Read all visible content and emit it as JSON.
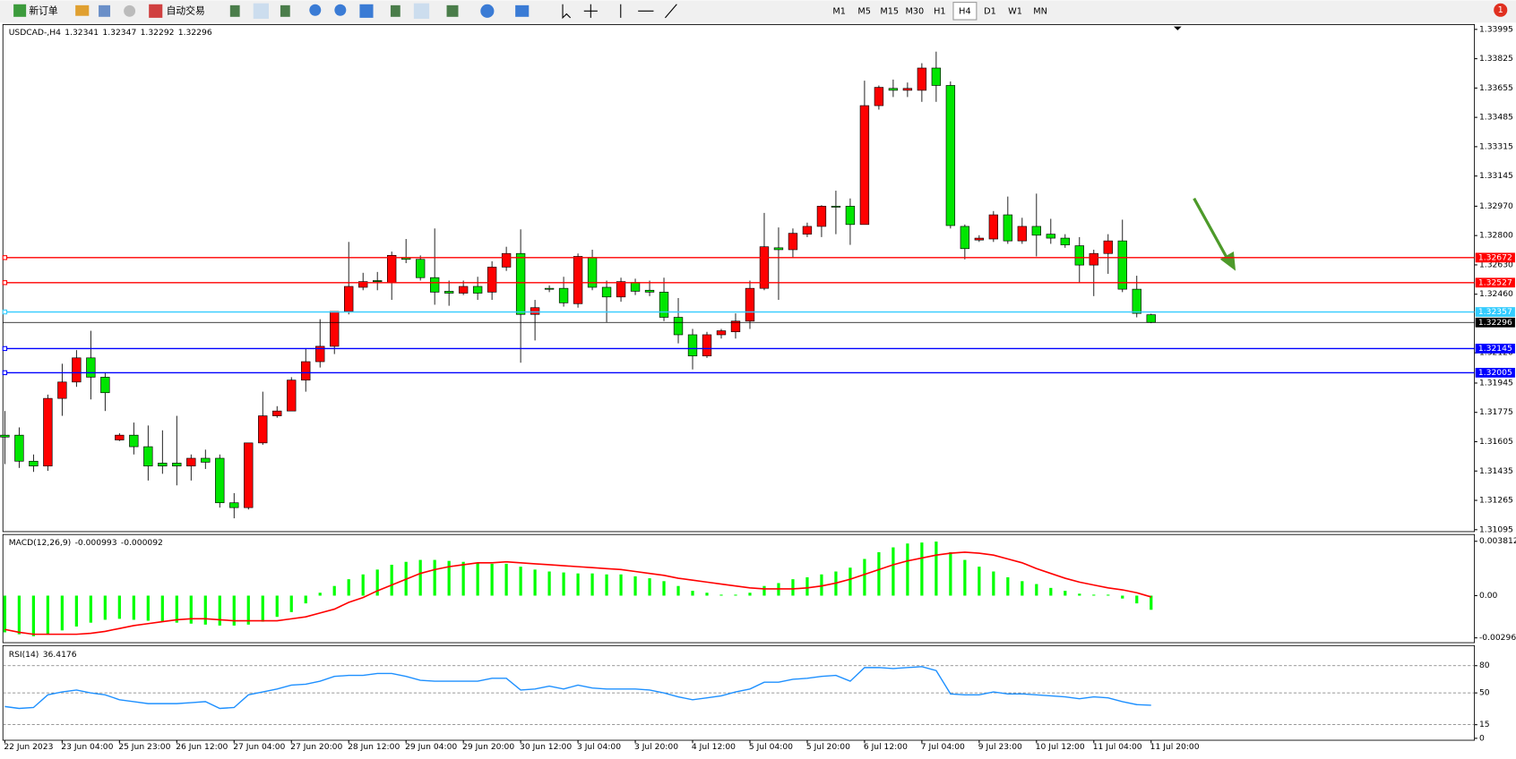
{
  "toolbar": {
    "new_order": "新订单",
    "auto_trading": "自动交易",
    "timeframes": [
      "M1",
      "M5",
      "M15",
      "M30",
      "H1",
      "H4",
      "D1",
      "W1",
      "MN"
    ],
    "selected_timeframe": "H4",
    "notifications": 1
  },
  "chart_data": [
    {
      "type": "candlestick",
      "symbol": "USDCAD-,H4",
      "up_color": "#ff0000",
      "down_color": "#00e600",
      "categories": [
        "22 Jun 2023",
        null,
        null,
        null,
        "23 Jun 04:00",
        null,
        null,
        null,
        "25 Jun 23:00",
        null,
        null,
        null,
        "26 Jun 12:00",
        null,
        null,
        null,
        "27 Jun 04:00",
        null,
        null,
        null,
        "27 Jun 20:00",
        null,
        null,
        null,
        "28 Jun 12:00",
        null,
        null,
        null,
        "29 Jun 04:00",
        null,
        null,
        null,
        "29 Jun 20:00",
        null,
        null,
        null,
        "30 Jun 12:00",
        null,
        null,
        null,
        "3 Jul 04:00",
        null,
        null,
        null,
        "3 Jul 20:00",
        null,
        null,
        null,
        "4 Jul 12:00",
        null,
        null,
        null,
        "5 Jul 04:00",
        null,
        null,
        null,
        "5 Jul 20:00",
        null,
        null,
        null,
        "6 Jul 12:00",
        null,
        null,
        null,
        "7 Jul 04:00",
        null,
        null,
        null,
        "9 Jul 23:00",
        null,
        null,
        null,
        "10 Jul 12:00",
        null,
        null,
        null,
        "11 Jul 04:00",
        null,
        null,
        null,
        "11 Jul 20:00"
      ],
      "ohlc": [
        [
          1.31643,
          1.31783,
          1.31475,
          1.31632
        ],
        [
          1.31643,
          1.31688,
          1.31453,
          1.31492
        ],
        [
          1.31492,
          1.31531,
          1.3143,
          1.31464
        ],
        [
          1.31464,
          1.31878,
          1.31436,
          1.31856
        ],
        [
          1.31856,
          1.32057,
          1.31755,
          1.31951
        ],
        [
          1.31951,
          1.32136,
          1.31923,
          1.32091
        ],
        [
          1.32091,
          1.32248,
          1.3185,
          1.31979
        ],
        [
          1.31979,
          1.32007,
          1.31783,
          1.31889
        ],
        [
          1.31615,
          1.31654,
          1.31609,
          1.31643
        ],
        [
          1.31643,
          1.31716,
          1.31531,
          1.31576
        ],
        [
          1.31576,
          1.31699,
          1.3138,
          1.31464
        ],
        [
          1.31481,
          1.31671,
          1.31419,
          1.31464
        ],
        [
          1.31481,
          1.31755,
          1.31352,
          1.31464
        ],
        [
          1.31464,
          1.31531,
          1.3138,
          1.31509
        ],
        [
          1.31509,
          1.31559,
          1.31447,
          1.31486
        ],
        [
          1.31509,
          1.31531,
          1.31223,
          1.31251
        ],
        [
          1.31251,
          1.31307,
          1.31161,
          1.31223
        ],
        [
          1.31223,
          1.31598,
          1.31212,
          1.31598
        ],
        [
          1.31598,
          1.31895,
          1.31587,
          1.31755
        ],
        [
          1.31755,
          1.31811,
          1.31744,
          1.31783
        ],
        [
          1.31783,
          1.31979,
          1.31783,
          1.31962
        ],
        [
          1.31962,
          1.32147,
          1.31895,
          1.32069
        ],
        [
          1.32069,
          1.32315,
          1.32035,
          1.32158
        ],
        [
          1.32158,
          1.3236,
          1.32113,
          1.3236
        ],
        [
          1.3236,
          1.32763,
          1.32343,
          1.32505
        ],
        [
          1.325,
          1.32584,
          1.32483,
          1.32533
        ],
        [
          1.32539,
          1.32589,
          1.32483,
          1.32533
        ],
        [
          1.32528,
          1.32707,
          1.32427,
          1.32685
        ],
        [
          1.32673,
          1.3278,
          1.3264,
          1.32662
        ],
        [
          1.32662,
          1.32685,
          1.32539,
          1.32556
        ],
        [
          1.32556,
          1.32841,
          1.32399,
          1.32472
        ],
        [
          1.32477,
          1.32539,
          1.32393,
          1.32466
        ],
        [
          1.32466,
          1.32539,
          1.32455,
          1.32505
        ],
        [
          1.32505,
          1.32561,
          1.32427,
          1.32466
        ],
        [
          1.32472,
          1.32651,
          1.32427,
          1.32617
        ],
        [
          1.32617,
          1.32735,
          1.32595,
          1.32696
        ],
        [
          1.32696,
          1.32836,
          1.32063,
          1.32343
        ],
        [
          1.32343,
          1.32427,
          1.32192,
          1.32382
        ],
        [
          1.32494,
          1.32511,
          1.32472,
          1.32489
        ],
        [
          1.32494,
          1.32561,
          1.32388,
          1.3241
        ],
        [
          1.32405,
          1.32696,
          1.32382,
          1.32679
        ],
        [
          1.32673,
          1.32718,
          1.32483,
          1.325
        ],
        [
          1.325,
          1.32539,
          1.32298,
          1.32444
        ],
        [
          1.32444,
          1.32556,
          1.32416,
          1.32533
        ],
        [
          1.32528,
          1.3255,
          1.32455,
          1.32477
        ],
        [
          1.32483,
          1.32539,
          1.32449,
          1.32472
        ],
        [
          1.32472,
          1.32556,
          1.32304,
          1.32326
        ],
        [
          1.32326,
          1.32438,
          1.32175,
          1.32225
        ],
        [
          1.32225,
          1.32259,
          1.32024,
          1.32102
        ],
        [
          1.32102,
          1.32242,
          1.32091,
          1.32225
        ],
        [
          1.32225,
          1.32259,
          1.32203,
          1.32248
        ],
        [
          1.32242,
          1.32349,
          1.32203,
          1.32304
        ],
        [
          1.32304,
          1.32539,
          1.32259,
          1.32494
        ],
        [
          1.32494,
          1.32931,
          1.32483,
          1.32735
        ],
        [
          1.32729,
          1.32847,
          1.32427,
          1.32718
        ],
        [
          1.32718,
          1.32841,
          1.32673,
          1.32813
        ],
        [
          1.32808,
          1.32875,
          1.32791,
          1.32853
        ],
        [
          1.32853,
          1.32976,
          1.32791,
          1.3297
        ],
        [
          1.3297,
          1.3306,
          1.32808,
          1.32965
        ],
        [
          1.3297,
          1.33015,
          1.32746,
          1.32864
        ],
        [
          1.32864,
          1.33698,
          1.32864,
          1.33553
        ],
        [
          1.33553,
          1.3367,
          1.3353,
          1.33659
        ],
        [
          1.33653,
          1.33704,
          1.33603,
          1.33642
        ],
        [
          1.33642,
          1.33687,
          1.33603,
          1.33653
        ],
        [
          1.33642,
          1.33799,
          1.33575,
          1.33771
        ],
        [
          1.33771,
          1.33866,
          1.33575,
          1.3367
        ],
        [
          1.3367,
          1.33693,
          1.32841,
          1.32858
        ],
        [
          1.32853,
          1.32864,
          1.32662,
          1.32724
        ],
        [
          1.32774,
          1.32802,
          1.32763,
          1.32785
        ],
        [
          1.3278,
          1.32942,
          1.32763,
          1.3292
        ],
        [
          1.3292,
          1.33026,
          1.32752,
          1.32769
        ],
        [
          1.32769,
          1.32903,
          1.32752,
          1.32853
        ],
        [
          1.32853,
          1.33043,
          1.32679,
          1.32802
        ],
        [
          1.32808,
          1.32897,
          1.32752,
          1.32785
        ],
        [
          1.32785,
          1.32808,
          1.32729,
          1.32746
        ],
        [
          1.32741,
          1.32791,
          1.32528,
          1.32629
        ],
        [
          1.32629,
          1.32718,
          1.32449,
          1.32696
        ],
        [
          1.32696,
          1.32808,
          1.32578,
          1.32769
        ],
        [
          1.32769,
          1.32892,
          1.32472,
          1.32489
        ],
        [
          1.32489,
          1.32567,
          1.32326,
          1.32349
        ],
        [
          1.32341,
          1.32347,
          1.32292,
          1.32296
        ]
      ],
      "ylim": [
        1.31095,
        1.33995
      ],
      "yticks": [
        1.33995,
        1.33825,
        1.33655,
        1.33485,
        1.33315,
        1.33145,
        {
          "value": 1.3297,
          "label": "1.32970"
        },
        {
          "value": 1.328,
          "label": "1.32800"
        },
        {
          "value": 1.3263,
          "label": "1.32630"
        },
        {
          "value": 1.3246,
          "label": "1.32460"
        },
        {
          "value": 1.3212,
          "label": "1.32120"
        },
        1.31945,
        1.31775,
        1.31605,
        1.31435,
        1.31265,
        1.31095
      ],
      "levels": [
        {
          "value": 1.32672,
          "color": "#ff0000"
        },
        {
          "value": 1.32527,
          "color": "#ff0000"
        },
        {
          "value": 1.32357,
          "color": "#33ccff"
        },
        {
          "value": 1.32145,
          "color": "#0000ff"
        },
        {
          "value": 1.32005,
          "color": "#0000ff"
        }
      ]
    },
    {
      "type": "macd",
      "title": "MACD(12,26,9)",
      "series": [
        {
          "color": "#00ff00",
          "values": [
            -0.002573,
            -0.002708,
            -0.002843,
            -0.002708,
            -0.002437,
            -0.002166,
            -0.001896,
            -0.001693,
            -0.001625,
            -0.001693,
            -0.00176,
            -0.001828,
            -0.001896,
            -0.001963,
            -0.002031,
            -0.002099,
            -0.002099,
            -0.002031,
            -0.001828,
            -0.001489,
            -0.001151,
            -0.000542,
            0.000203,
            0.000677,
            0.001151,
            0.001489,
            0.001828,
            0.002166,
            0.00237,
            0.002505,
            0.002505,
            0.002437,
            0.00237,
            0.002302,
            0.002234,
            0.002234,
            0.002031,
            0.001828,
            0.001693,
            0.001625,
            0.001557,
            0.001557,
            0.001489,
            0.001489,
            0.001354,
            0.001219,
            0.001016,
            0.000677,
            0.000339,
            0.000203,
            6.8e-05,
            6.8e-05,
            0.000203,
            0.000677,
            0.00088,
            0.001151,
            0.001286,
            0.001489,
            0.001693,
            0.001963,
            0.002573,
            0.003047,
            0.003385,
            0.003656,
            0.003724,
            0.003791,
            0.003047,
            0.002505,
            0.002031,
            0.001693,
            0.001286,
            0.001016,
            0.000812,
            0.000542,
            0.000339,
            0.000135,
            6.8e-05,
            6.8e-05,
            -0.000203,
            -0.000542,
            -0.000993
          ]
        },
        {
          "color": "#ff0000",
          "values": [
            -0.00237,
            -0.002573,
            -0.002708,
            -0.002708,
            -0.002708,
            -0.002708,
            -0.00264,
            -0.002505,
            -0.002302,
            -0.002099,
            -0.001963,
            -0.001828,
            -0.001693,
            -0.001625,
            -0.001625,
            -0.001693,
            -0.00176,
            -0.00176,
            -0.00176,
            -0.00176,
            -0.001625,
            -0.001489,
            -0.001219,
            -0.000948,
            -0.000474,
            -0.000135,
            0.000339,
            0.000745,
            0.001151,
            0.001557,
            0.001828,
            0.002031,
            0.002166,
            0.002302,
            0.002302,
            0.00237,
            0.002302,
            0.002234,
            0.002166,
            0.002099,
            0.002031,
            0.001963,
            0.001896,
            0.001828,
            0.001693,
            0.001557,
            0.001422,
            0.001219,
            0.001083,
            0.000948,
            0.000812,
            0.000677,
            0.000542,
            0.000474,
            0.000474,
            0.000474,
            0.000542,
            0.000677,
            0.00088,
            0.001151,
            0.001489,
            0.001828,
            0.002166,
            0.002437,
            0.00264,
            0.002843,
            0.002979,
            0.003047,
            0.002979,
            0.002843,
            0.002573,
            0.002302,
            0.001896,
            0.001557,
            0.001219,
            0.000948,
            0.000745,
            0.000542,
            0.000406,
            0.000203,
            -9.2e-05
          ]
        }
      ],
      "ylim": [
        -0.002961,
        0.003812
      ],
      "yticks": [
        0.003812,
        {
          "value": 0,
          "label": "0.00"
        },
        -0.002961
      ]
    },
    {
      "type": "line",
      "title": "RSI(14)",
      "series": [
        {
          "color": "#1e90ff",
          "values": [
            35.0,
            32.9,
            33.9,
            47.9,
            51.1,
            53.2,
            50.0,
            47.9,
            42.5,
            40.4,
            38.2,
            38.2,
            38.2,
            39.3,
            40.4,
            32.9,
            33.9,
            47.9,
            51.1,
            54.3,
            58.6,
            59.6,
            62.9,
            68.2,
            69.3,
            69.3,
            71.4,
            71.4,
            68.2,
            63.9,
            62.9,
            62.9,
            62.9,
            62.9,
            66.1,
            66.1,
            53.2,
            54.3,
            57.5,
            54.3,
            58.6,
            55.4,
            54.3,
            54.3,
            54.3,
            53.2,
            50.0,
            45.7,
            42.5,
            44.6,
            46.8,
            51.1,
            54.3,
            61.8,
            61.8,
            65.0,
            66.1,
            68.2,
            69.3,
            62.9,
            77.9,
            77.9,
            76.8,
            77.9,
            78.9,
            74.6,
            48.9,
            47.9,
            47.9,
            51.1,
            48.9,
            48.9,
            47.9,
            46.8,
            45.7,
            43.6,
            45.7,
            44.6,
            40.4,
            37.1,
            36.4176
          ]
        }
      ],
      "ylim": [
        0,
        100
      ],
      "yticks": [
        80,
        50,
        15,
        0
      ],
      "grid": true
    }
  ]
}
